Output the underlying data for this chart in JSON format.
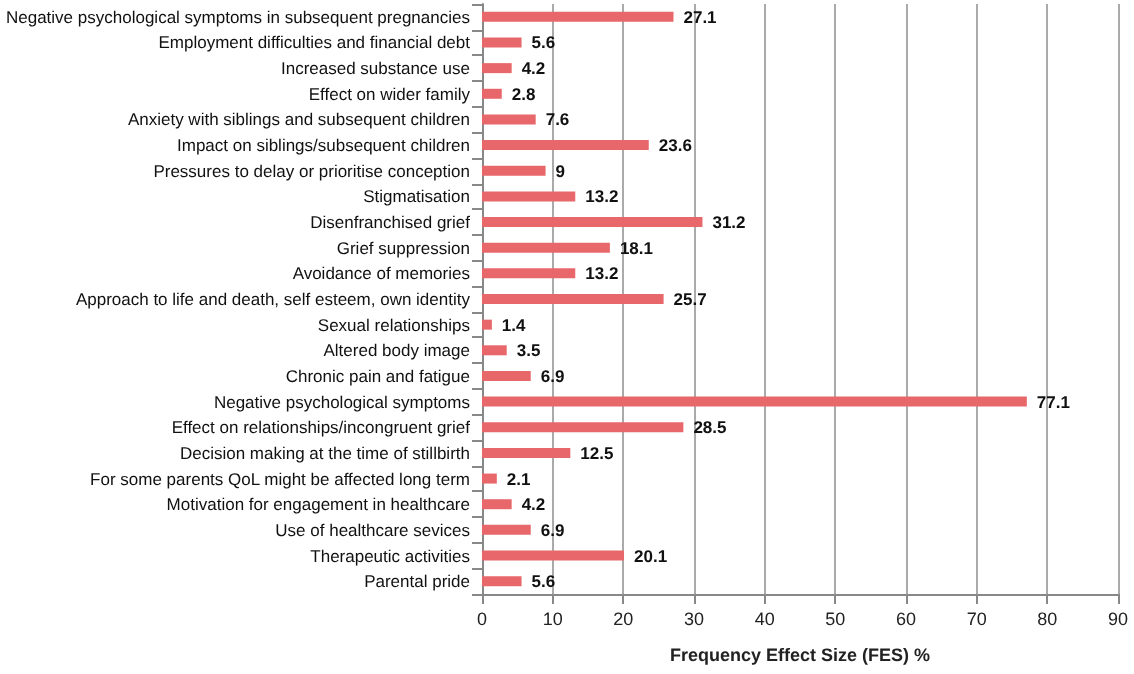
{
  "chart_data": {
    "type": "bar",
    "orientation": "horizontal",
    "xlabel": "Frequency Effect Size (FES) %",
    "categories": [
      "Negative psychological symptoms in subsequent pregnancies",
      "Employment difficulties and financial debt",
      "Increased substance use",
      "Effect on wider family",
      "Anxiety with siblings and subsequent children",
      "Impact on siblings/subsequent children",
      "Pressures to delay or prioritise conception",
      "Stigmatisation",
      "Disenfranchised grief",
      "Grief suppression",
      "Avoidance of memories",
      "Approach to life and death, self esteem, own identity",
      "Sexual relationships",
      "Altered body image",
      "Chronic pain and fatigue",
      "Negative psychological symptoms",
      "Effect on relationships/incongruent grief",
      "Decision making at the time of stillbirth",
      "For some parents QoL might be affected long term",
      "Motivation for engagement in healthcare",
      "Use of healthcare sevices",
      "Therapeutic activities",
      "Parental pride"
    ],
    "values": [
      27.1,
      5.6,
      4.2,
      2.8,
      7.6,
      23.6,
      9,
      13.2,
      31.2,
      18.1,
      13.2,
      25.7,
      1.4,
      3.5,
      6.9,
      77.1,
      28.5,
      12.5,
      2.1,
      4.2,
      6.9,
      20.1,
      5.6
    ],
    "color": "#e8676a",
    "xlim": [
      0,
      90
    ],
    "xticks": [
      0,
      10,
      20,
      30,
      40,
      50,
      60,
      70,
      80,
      90
    ],
    "grid": "x",
    "data_labels": true
  }
}
